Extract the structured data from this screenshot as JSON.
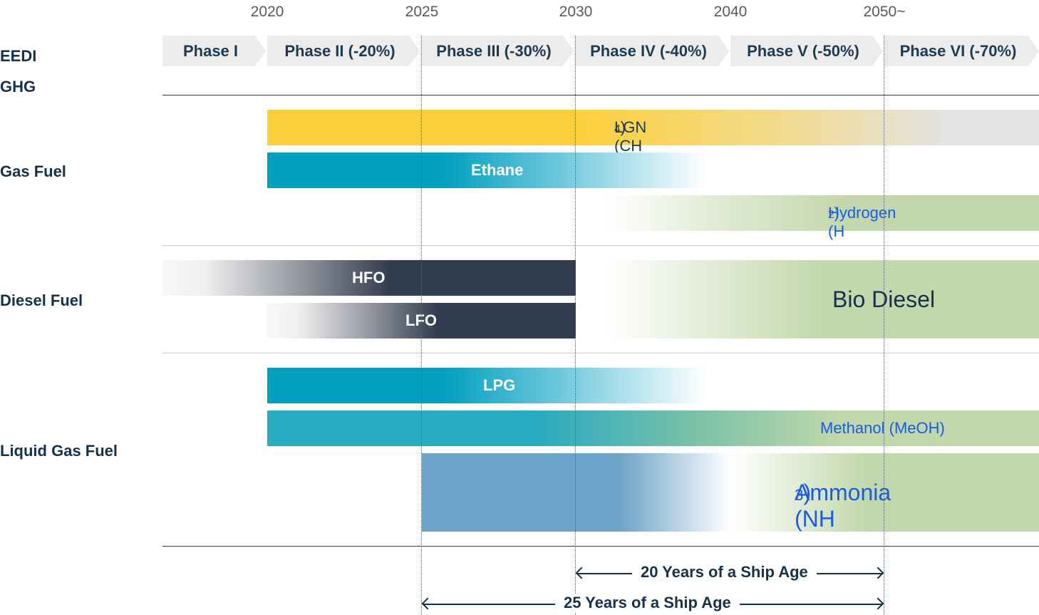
{
  "years": [
    "2020",
    "2025",
    "2030",
    "2040",
    "2050~"
  ],
  "phases": [
    "Phase I",
    "Phase II (-20%)",
    "Phase III (-30%)",
    "Phase IV (-40%)",
    "Phase V (-50%)",
    "Phase VI (-70%)"
  ],
  "row_labels": {
    "eedi": "EEDI",
    "ghg": "GHG",
    "gas_fuel": "Gas Fuel",
    "diesel_fuel": "Diesel Fuel",
    "liquid_gas_fuel": "Liquid Gas Fuel"
  },
  "fuels": {
    "lgn": {
      "name": "LGN (CH",
      "sub": "4",
      "close": ")"
    },
    "ethane": "Ethane",
    "hydrogen": {
      "name": "Hydrogen (H",
      "sub": "2",
      "close": ")"
    },
    "hfo": "HFO",
    "lfo": "LFO",
    "bio_diesel": "Bio Diesel",
    "lpg": "LPG",
    "methanol": "Methanol (MeOH)",
    "ammonia": {
      "name": "Ammonia (NH",
      "sub": "3",
      "close": ")"
    }
  },
  "ship_age": {
    "twenty": "20 Years of a Ship Age",
    "twentyfive": "25 Years of a Ship Age"
  },
  "colors": {
    "lgn": "#fdd03b",
    "teal": "#009fbf",
    "green": "#c2d8ac",
    "dark": "#323d4f",
    "steel_blue": "#6ca3c8",
    "methanol_teal": "#28aac1",
    "blue_text": "#1a5ce6"
  }
}
